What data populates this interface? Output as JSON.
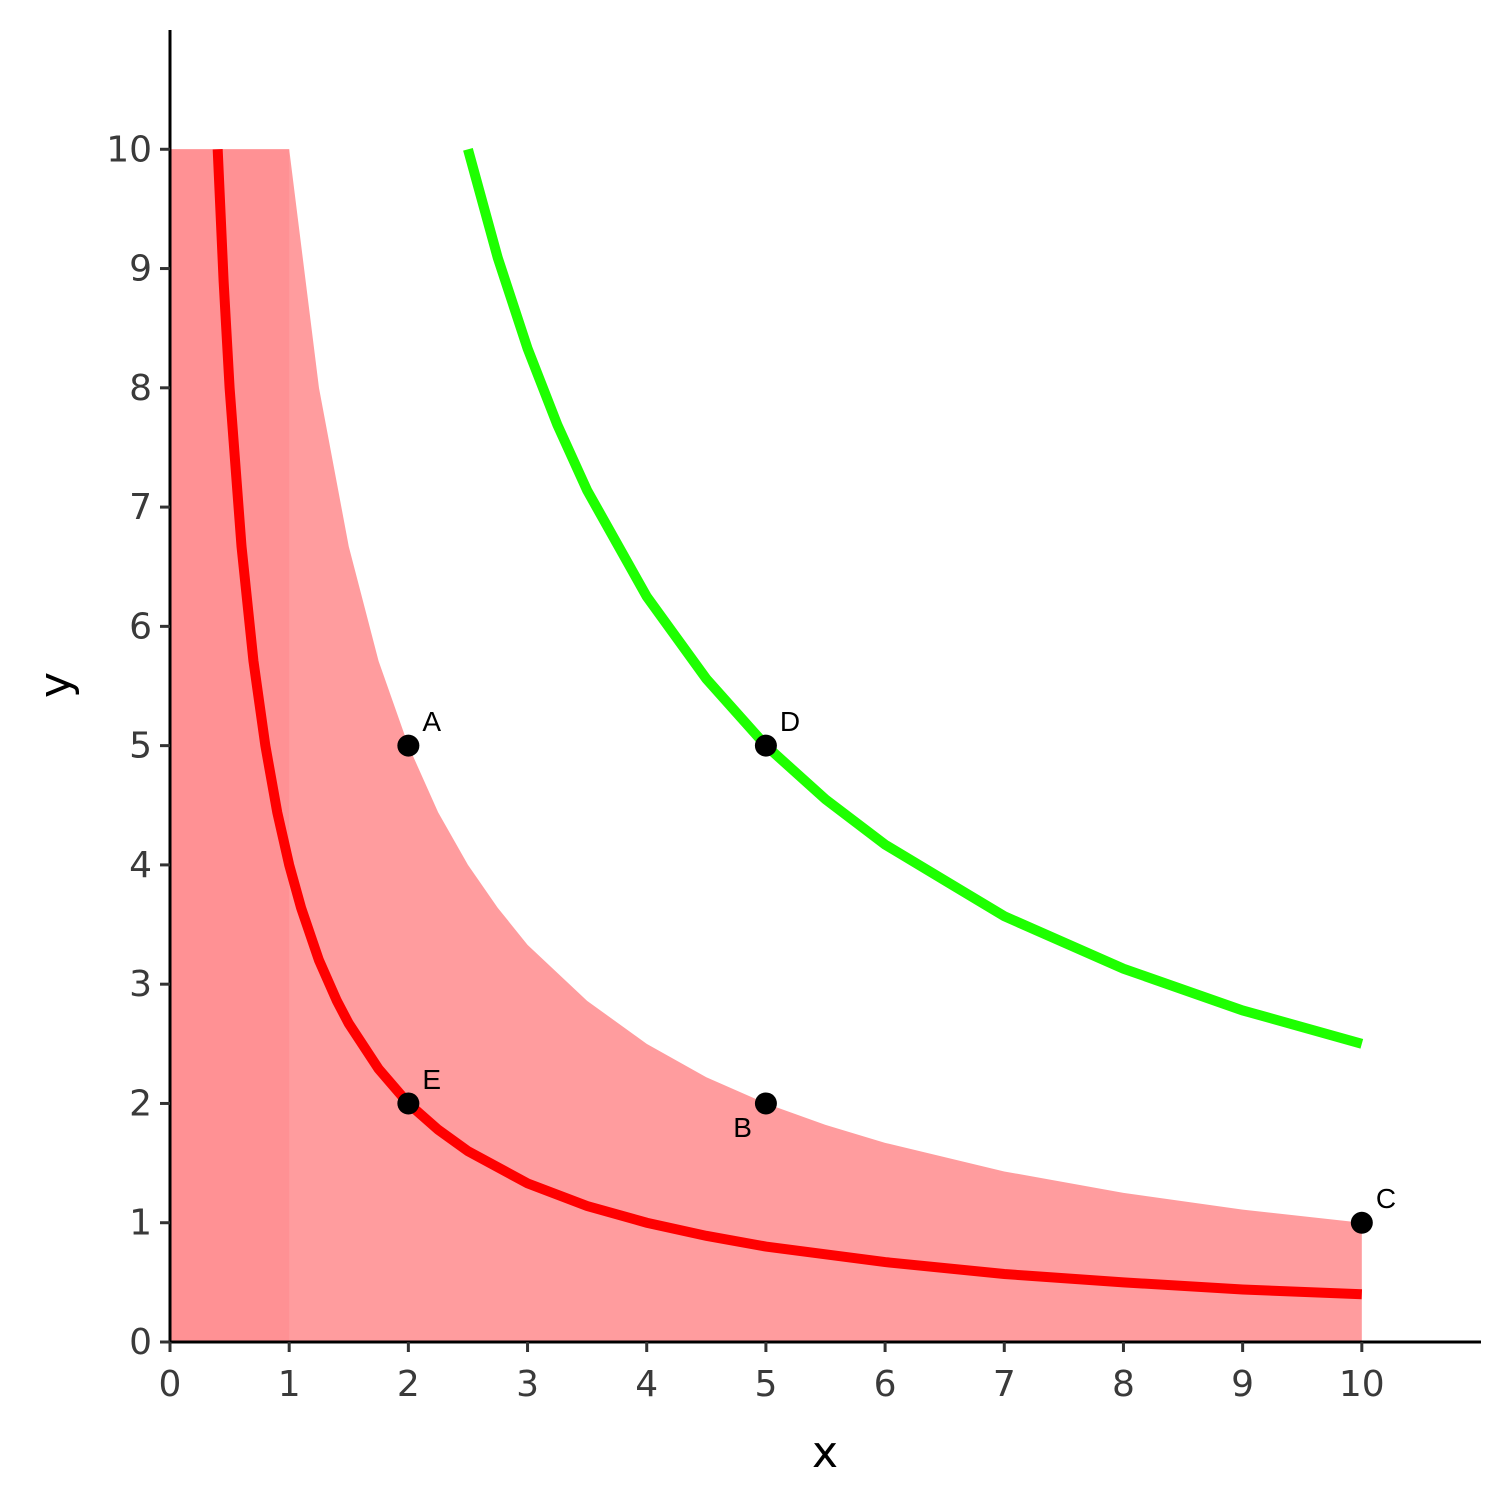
{
  "chart_data": {
    "type": "line",
    "xlabel": "x",
    "ylabel": "y",
    "xlim": [
      0,
      11
    ],
    "ylim": [
      0,
      11
    ],
    "xticks": [
      0,
      1,
      2,
      3,
      4,
      5,
      6,
      7,
      8,
      9,
      10
    ],
    "yticks": [
      0,
      1,
      2,
      3,
      4,
      5,
      6,
      7,
      8,
      9,
      10
    ],
    "grid": false,
    "series": [
      {
        "kind": "area",
        "color": "#ff9c9e",
        "x": [
          0,
          1,
          1.25,
          1.5,
          1.75,
          2,
          2.25,
          2.5,
          2.75,
          3,
          3.5,
          4,
          4.5,
          5,
          5.5,
          6,
          7,
          8,
          9,
          10
        ],
        "values": [
          10,
          10,
          8,
          6.67,
          5.71,
          5,
          4.44,
          4,
          3.64,
          3.33,
          2.86,
          2.5,
          2.22,
          2,
          1.82,
          1.67,
          1.43,
          1.25,
          1.11,
          1
        ]
      },
      {
        "kind": "area",
        "color": "#ff9194",
        "x": [
          0,
          1
        ],
        "values": [
          10,
          10
        ]
      },
      {
        "kind": "line",
        "color": "#ff0000",
        "x": [
          0.4,
          0.45,
          0.5,
          0.6,
          0.7,
          0.8,
          0.9,
          1,
          1.1,
          1.25,
          1.4,
          1.5,
          1.75,
          2,
          2.25,
          2.5,
          3,
          3.5,
          4,
          4.5,
          5,
          6,
          7,
          8,
          9,
          10
        ],
        "values": [
          10,
          8.89,
          8,
          6.67,
          5.71,
          5,
          4.44,
          4,
          3.64,
          3.2,
          2.86,
          2.67,
          2.29,
          2,
          1.78,
          1.6,
          1.33,
          1.14,
          1,
          0.89,
          0.8,
          0.67,
          0.57,
          0.5,
          0.44,
          0.4
        ]
      },
      {
        "kind": "line",
        "color": "#1eff00",
        "x": [
          2.5,
          2.75,
          3,
          3.25,
          3.5,
          4,
          4.5,
          5,
          5.5,
          6,
          7,
          8,
          9,
          10
        ],
        "values": [
          10,
          9.09,
          8.33,
          7.69,
          7.14,
          6.25,
          5.56,
          5,
          4.55,
          4.17,
          3.57,
          3.13,
          2.78,
          2.5
        ]
      }
    ],
    "points": [
      {
        "label": "A",
        "x": 2,
        "y": 5,
        "label_side": "top-right"
      },
      {
        "label": "B",
        "x": 5,
        "y": 2,
        "label_side": "bottom-left"
      },
      {
        "label": "C",
        "x": 10,
        "y": 1,
        "label_side": "top-right"
      },
      {
        "label": "D",
        "x": 5,
        "y": 5,
        "label_side": "top-right"
      },
      {
        "label": "E",
        "x": 2,
        "y": 2,
        "label_side": "top-right"
      }
    ]
  }
}
